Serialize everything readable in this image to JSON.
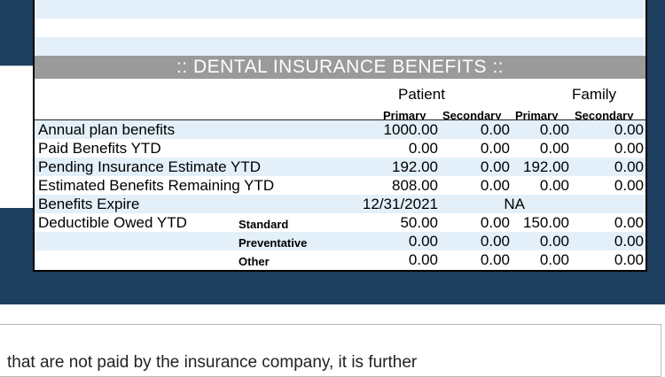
{
  "section_title": ":: DENTAL INSURANCE BENEFITS ::",
  "group_headers": {
    "patient": "Patient",
    "family": "Family"
  },
  "sub_headers": [
    "Primary",
    "Secondary",
    "Primary",
    "Secondary"
  ],
  "rows": [
    {
      "label": "Annual plan benefits",
      "sub": "",
      "values": [
        "1000.00",
        "0.00",
        "0.00",
        "0.00"
      ]
    },
    {
      "label": "Paid Benefits YTD",
      "sub": "",
      "values": [
        "0.00",
        "0.00",
        "0.00",
        "0.00"
      ]
    },
    {
      "label": "Pending Insurance Estimate YTD",
      "sub": "",
      "values": [
        "192.00",
        "0.00",
        "192.00",
        "0.00"
      ]
    },
    {
      "label": "Estimated Benefits Remaining YTD",
      "sub": "",
      "values": [
        "808.00",
        "0.00",
        "0.00",
        "0.00"
      ]
    },
    {
      "label": "Benefits Expire",
      "sub": "",
      "values": [
        "12/31/2021",
        "NA",
        "",
        ""
      ]
    },
    {
      "label": "Deductible Owed YTD",
      "sub": "Standard",
      "values": [
        "50.00",
        "0.00",
        "150.00",
        "0.00"
      ]
    },
    {
      "label": "",
      "sub": "Preventative",
      "values": [
        "0.00",
        "0.00",
        "0.00",
        "0.00"
      ]
    },
    {
      "label": "",
      "sub": "Other",
      "values": [
        "0.00",
        "0.00",
        "0.00",
        "0.00"
      ]
    }
  ],
  "bottom_text": "that are not paid by the insurance company, it is further"
}
